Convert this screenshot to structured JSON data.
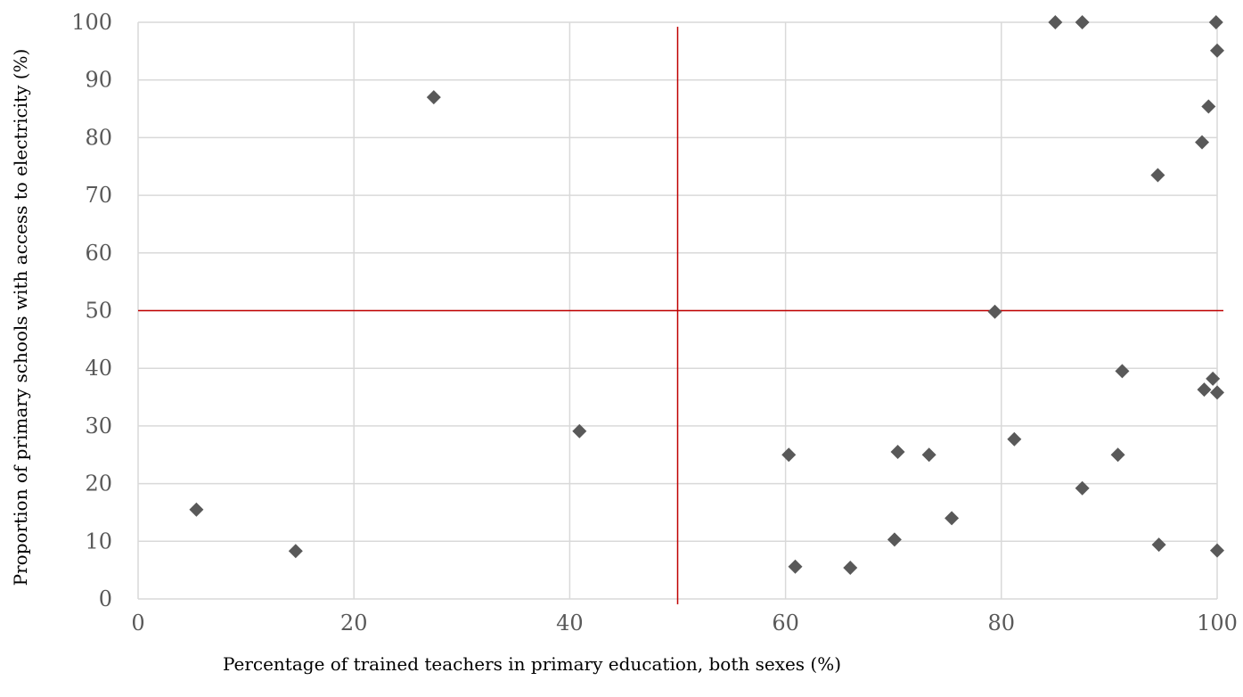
{
  "chart_data": {
    "type": "scatter",
    "title": "",
    "xlabel": "Percentage of trained teachers in primary education, both sexes (%)",
    "ylabel": "Proportion of primary schools with access to electricity (%)",
    "xlim": [
      0,
      100
    ],
    "ylim": [
      0,
      100
    ],
    "xticks": [
      0,
      20,
      40,
      60,
      80,
      100
    ],
    "yticks": [
      0,
      10,
      20,
      30,
      40,
      50,
      60,
      70,
      80,
      90,
      100
    ],
    "grid": "vertical and horizontal",
    "reference_lines": {
      "x": 50,
      "y": 50
    },
    "series": [
      {
        "points": [
          [
            5.4,
            15.5
          ],
          [
            14.6,
            8.3
          ],
          [
            27.4,
            87.0
          ],
          [
            40.9,
            29.1
          ],
          [
            60.3,
            25.0
          ],
          [
            60.9,
            5.6
          ],
          [
            66.0,
            5.4
          ],
          [
            70.1,
            10.3
          ],
          [
            70.4,
            25.5
          ],
          [
            73.3,
            25.0
          ],
          [
            75.4,
            14.0
          ],
          [
            79.4,
            49.8
          ],
          [
            81.2,
            27.7
          ],
          [
            85.0,
            100.0
          ],
          [
            87.5,
            100.0
          ],
          [
            87.5,
            19.2
          ],
          [
            90.8,
            25.0
          ],
          [
            91.2,
            39.5
          ],
          [
            94.5,
            73.5
          ],
          [
            94.6,
            9.4
          ],
          [
            98.6,
            79.2
          ],
          [
            98.8,
            36.3
          ],
          [
            99.2,
            85.4
          ],
          [
            99.6,
            38.2
          ],
          [
            99.9,
            100.0
          ],
          [
            100.0,
            95.1
          ],
          [
            100.0,
            35.8
          ],
          [
            100.0,
            8.4
          ]
        ]
      }
    ],
    "colors": {
      "marker": "#595959",
      "grid": "#d9d9d9",
      "reference": "#c00000"
    }
  }
}
